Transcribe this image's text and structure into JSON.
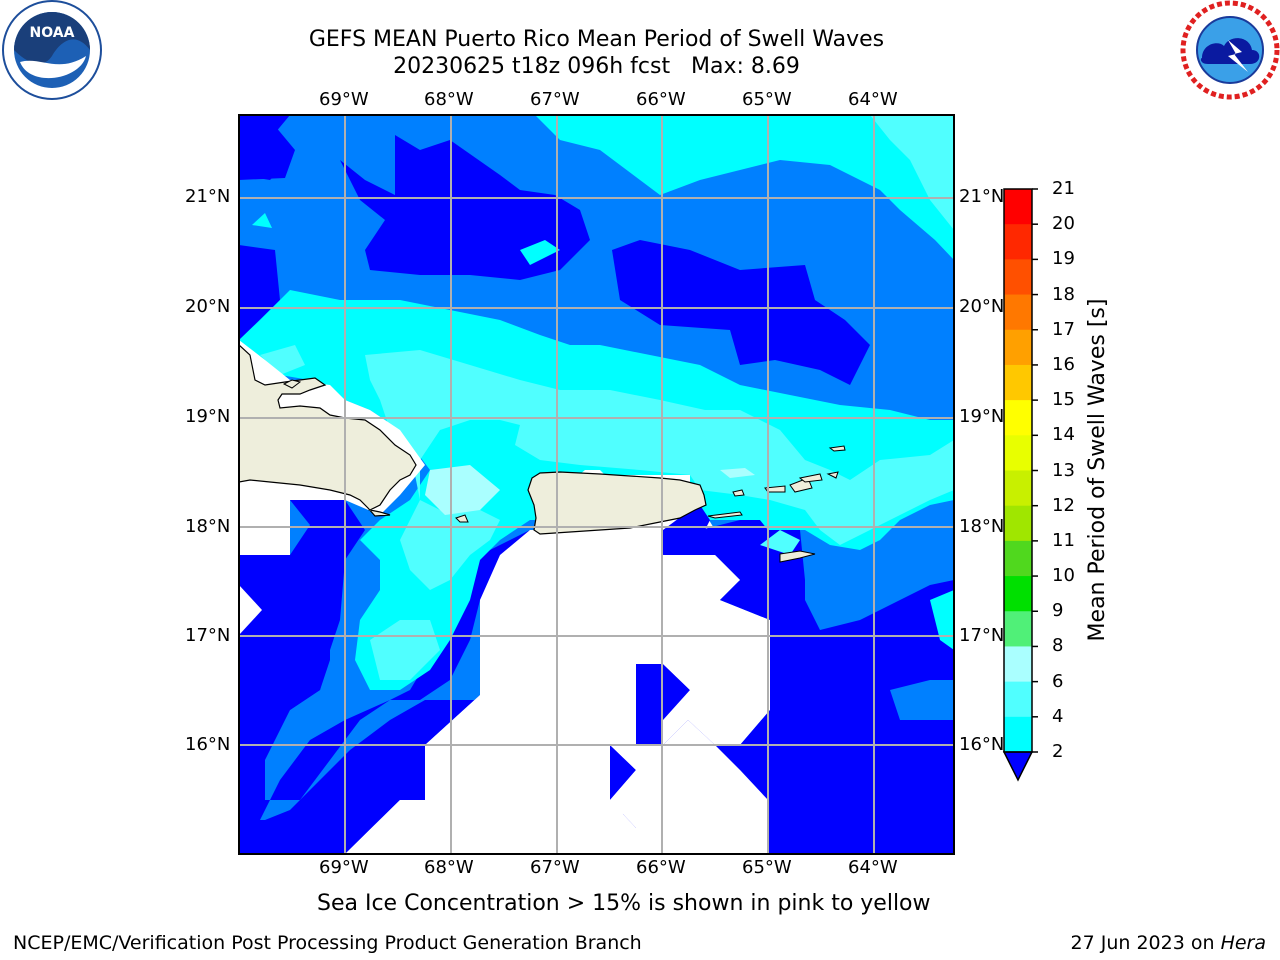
{
  "title_line1": "GEFS MEAN Puerto Rico Mean Period of Swell Waves",
  "title_line2": "20230625 t18z 096h fcst   Max: 8.69",
  "longitude_labels": [
    "69°W",
    "68°W",
    "67°W",
    "66°W",
    "65°W",
    "64°W"
  ],
  "latitude_labels": [
    "21°N",
    "20°N",
    "19°N",
    "18°N",
    "17°N",
    "16°N"
  ],
  "colorbar": {
    "label": "Mean Period of Swell Waves [s]",
    "ticks": [
      "21",
      "20",
      "19",
      "18",
      "17",
      "16",
      "15",
      "14",
      "13",
      "12",
      "11",
      "10",
      "9",
      "8",
      "6",
      "4",
      "2"
    ],
    "colors": [
      "#ff0000",
      "#ff2800",
      "#ff5000",
      "#ff7800",
      "#ffa000",
      "#ffc800",
      "#ffff00",
      "#e8ff00",
      "#c8f000",
      "#a0e600",
      "#50d81e",
      "#00e000",
      "#50f078",
      "#aaffff",
      "#50ffff",
      "#00ffff",
      "#0080ff",
      "#0000ff"
    ]
  },
  "note": "Sea Ice Concentration > 15% is shown in pink to yellow",
  "footer_left": "NCEP/EMC/Verification Post Processing Product Generation Branch",
  "footer_date": "27 Jun 2023 on ",
  "footer_machine": "Hera",
  "logo_left": {
    "icon": "noaa-logo",
    "text": "NOAA",
    "ring_top": "NATIONAL OCEANIC AND ATMOSPHERIC ADMINISTRATION",
    "ring_bottom": "U.S. DEPARTMENT OF COMMERCE"
  },
  "logo_right": {
    "icon": "nws-logo",
    "ring": "NATIONAL WEATHER SERVICE"
  }
}
